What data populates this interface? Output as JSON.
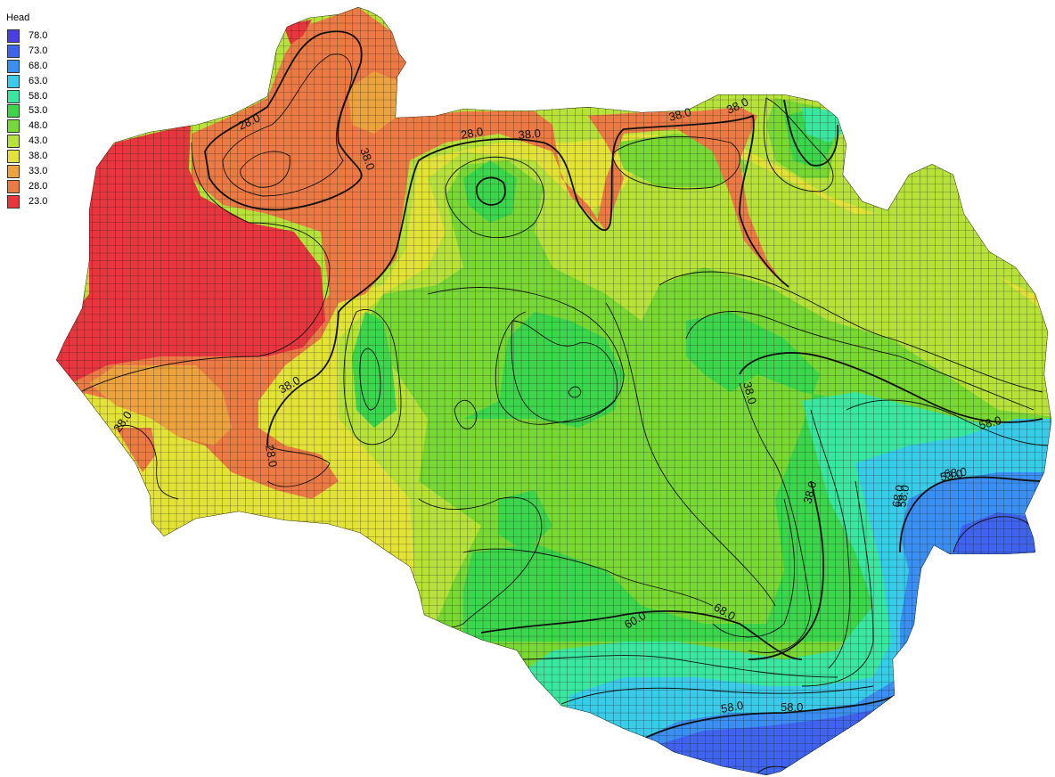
{
  "legend": {
    "title": "Head",
    "entries": [
      {
        "value": "78.0",
        "color": "#4a3ee6"
      },
      {
        "value": "73.0",
        "color": "#3f63ec"
      },
      {
        "value": "68.0",
        "color": "#3b8ff2"
      },
      {
        "value": "63.0",
        "color": "#39cbe8"
      },
      {
        "value": "58.0",
        "color": "#3be6a0"
      },
      {
        "value": "53.0",
        "color": "#3bd64b"
      },
      {
        "value": "48.0",
        "color": "#78d834"
      },
      {
        "value": "43.0",
        "color": "#b7e23a"
      },
      {
        "value": "38.0",
        "color": "#e2e238"
      },
      {
        "value": "33.0",
        "color": "#eca23f"
      },
      {
        "value": "28.0",
        "color": "#ec7a45"
      },
      {
        "value": "23.0",
        "color": "#e8363e"
      }
    ]
  },
  "contour_labels": [
    {
      "text": "28.0"
    },
    {
      "text": "38.0"
    },
    {
      "text": "28.0"
    },
    {
      "text": "38.0"
    },
    {
      "text": "38.0"
    },
    {
      "text": "38.0"
    },
    {
      "text": "28.0"
    },
    {
      "text": "38.0"
    },
    {
      "text": "28.0"
    },
    {
      "text": "38.0"
    },
    {
      "text": "38.0"
    },
    {
      "text": "58.0"
    },
    {
      "text": "53.0"
    },
    {
      "text": "58.0"
    },
    {
      "text": "60.0"
    },
    {
      "text": "68.0"
    },
    {
      "text": "58.0"
    },
    {
      "text": "58.0"
    },
    {
      "text": "68.0"
    },
    {
      "text": "68.0"
    }
  ]
}
